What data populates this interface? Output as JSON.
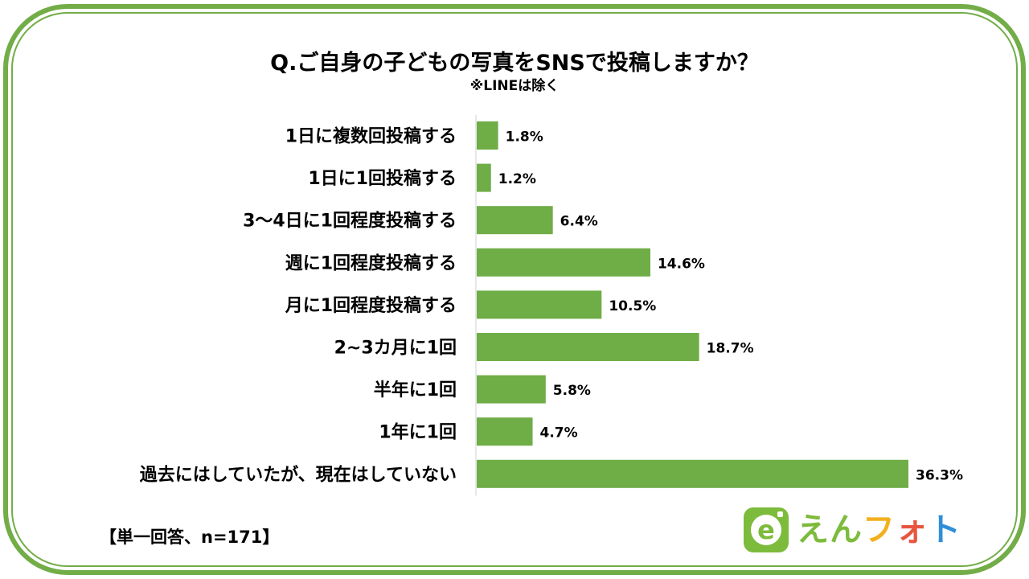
{
  "title": "Q.ご自身の子どもの写真をSNSで投稿しますか？",
  "subtitle": "※LINEは除く",
  "footnote": "【単一回答、n=171】",
  "logo": {
    "mark": "e",
    "text_chars": [
      "え",
      "ん",
      "フ",
      "ォ",
      "ト"
    ],
    "text_colors": [
      "#7dbb3c",
      "#7dbb3c",
      "#f2b01e",
      "#e8553f",
      "#2f8fd8"
    ],
    "mark_color": "#7dbb3c"
  },
  "colors": {
    "bar": "#6fad47",
    "frame": "#72ad47"
  },
  "chart_data": {
    "type": "bar",
    "orientation": "horizontal",
    "title": "Q.ご自身の子どもの写真をSNSで投稿しますか？",
    "subtitle": "※LINEは除く",
    "categories": [
      "1日に複数回投稿する",
      "1日に1回投稿する",
      "3〜4日に1回程度投稿する",
      "週に1回程度投稿する",
      "月に1回程度投稿する",
      "2~3カ月に1回",
      "半年に1回",
      "1年に1回",
      "過去にはしていたが、現在はしていない"
    ],
    "values": [
      1.8,
      1.2,
      6.4,
      14.6,
      10.5,
      18.7,
      5.8,
      4.7,
      36.3
    ],
    "value_labels": [
      "1.8%",
      "1.2%",
      "6.4%",
      "14.6%",
      "10.5%",
      "18.7%",
      "5.8%",
      "4.7%",
      "36.3%"
    ],
    "unit": "%",
    "xlim": [
      0,
      36.3
    ],
    "grid": false,
    "legend": "none"
  }
}
